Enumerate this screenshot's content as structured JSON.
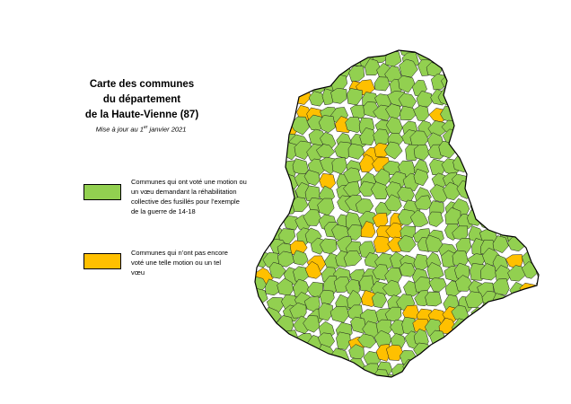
{
  "title": {
    "line1": "Carte des communes",
    "line2": "du département",
    "line3": "de la Haute-Vienne (87)"
  },
  "subtitle": {
    "prefix": "Mise à jour au 1",
    "sup": "er",
    "suffix": " janvier 2021"
  },
  "legend": [
    {
      "key": "voted",
      "color": "#92d050",
      "text": "Communes qui ont voté une motion ou un vœu demandant la réhabilitation collective des fusillés pour l’exemple de la guerre de 14-18"
    },
    {
      "key": "not_voted",
      "color": "#ffc000",
      "text": "Communes qui n’ont pas encore voté une telle motion ou un tel vœu"
    }
  ],
  "colors": {
    "voted": "#92d050",
    "not_voted": "#ffc000",
    "border": "#000000"
  }
}
